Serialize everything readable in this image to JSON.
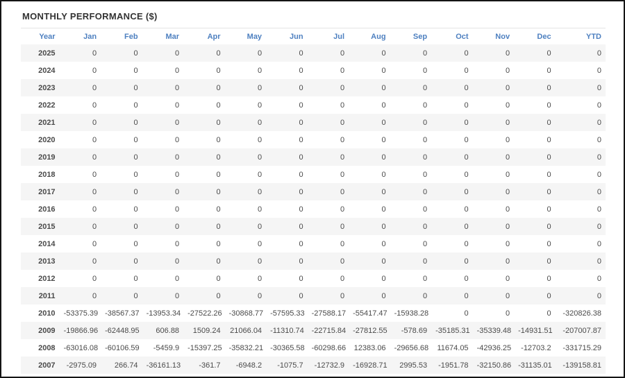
{
  "widget": {
    "title": "MONTHLY PERFORMANCE ($)"
  },
  "colors": {
    "header_blue": "#4e80c0",
    "negative_red": "#f97373",
    "text_dark": "#4a4a4a",
    "year_bold": "#333333",
    "row_stripe": "#f5f5f5",
    "divider": "#e4e4e4",
    "outer_border": "#141414"
  },
  "table": {
    "columns": [
      "Year",
      "Jan",
      "Feb",
      "Mar",
      "Apr",
      "May",
      "Jun",
      "Jul",
      "Aug",
      "Sep",
      "Oct",
      "Nov",
      "Dec",
      "YTD"
    ],
    "rows": [
      {
        "year": "2025",
        "values": [
          "0",
          "0",
          "0",
          "0",
          "0",
          "0",
          "0",
          "0",
          "0",
          "0",
          "0",
          "0",
          "0"
        ]
      },
      {
        "year": "2024",
        "values": [
          "0",
          "0",
          "0",
          "0",
          "0",
          "0",
          "0",
          "0",
          "0",
          "0",
          "0",
          "0",
          "0"
        ]
      },
      {
        "year": "2023",
        "values": [
          "0",
          "0",
          "0",
          "0",
          "0",
          "0",
          "0",
          "0",
          "0",
          "0",
          "0",
          "0",
          "0"
        ]
      },
      {
        "year": "2022",
        "values": [
          "0",
          "0",
          "0",
          "0",
          "0",
          "0",
          "0",
          "0",
          "0",
          "0",
          "0",
          "0",
          "0"
        ]
      },
      {
        "year": "2021",
        "values": [
          "0",
          "0",
          "0",
          "0",
          "0",
          "0",
          "0",
          "0",
          "0",
          "0",
          "0",
          "0",
          "0"
        ]
      },
      {
        "year": "2020",
        "values": [
          "0",
          "0",
          "0",
          "0",
          "0",
          "0",
          "0",
          "0",
          "0",
          "0",
          "0",
          "0",
          "0"
        ]
      },
      {
        "year": "2019",
        "values": [
          "0",
          "0",
          "0",
          "0",
          "0",
          "0",
          "0",
          "0",
          "0",
          "0",
          "0",
          "0",
          "0"
        ]
      },
      {
        "year": "2018",
        "values": [
          "0",
          "0",
          "0",
          "0",
          "0",
          "0",
          "0",
          "0",
          "0",
          "0",
          "0",
          "0",
          "0"
        ]
      },
      {
        "year": "2017",
        "values": [
          "0",
          "0",
          "0",
          "0",
          "0",
          "0",
          "0",
          "0",
          "0",
          "0",
          "0",
          "0",
          "0"
        ]
      },
      {
        "year": "2016",
        "values": [
          "0",
          "0",
          "0",
          "0",
          "0",
          "0",
          "0",
          "0",
          "0",
          "0",
          "0",
          "0",
          "0"
        ]
      },
      {
        "year": "2015",
        "values": [
          "0",
          "0",
          "0",
          "0",
          "0",
          "0",
          "0",
          "0",
          "0",
          "0",
          "0",
          "0",
          "0"
        ]
      },
      {
        "year": "2014",
        "values": [
          "0",
          "0",
          "0",
          "0",
          "0",
          "0",
          "0",
          "0",
          "0",
          "0",
          "0",
          "0",
          "0"
        ]
      },
      {
        "year": "2013",
        "values": [
          "0",
          "0",
          "0",
          "0",
          "0",
          "0",
          "0",
          "0",
          "0",
          "0",
          "0",
          "0",
          "0"
        ]
      },
      {
        "year": "2012",
        "values": [
          "0",
          "0",
          "0",
          "0",
          "0",
          "0",
          "0",
          "0",
          "0",
          "0",
          "0",
          "0",
          "0"
        ]
      },
      {
        "year": "2011",
        "values": [
          "0",
          "0",
          "0",
          "0",
          "0",
          "0",
          "0",
          "0",
          "0",
          "0",
          "0",
          "0",
          "0"
        ]
      },
      {
        "year": "2010",
        "values": [
          "-53375.39",
          "-38567.37",
          "-13953.34",
          "-27522.26",
          "-30868.77",
          "-57595.33",
          "-27588.17",
          "-55417.47",
          "-15938.28",
          "0",
          "0",
          "0",
          "-320826.38"
        ]
      },
      {
        "year": "2009",
        "values": [
          "-19866.96",
          "-62448.95",
          "606.88",
          "1509.24",
          "21066.04",
          "-11310.74",
          "-22715.84",
          "-27812.55",
          "-578.69",
          "-35185.31",
          "-35339.48",
          "-14931.51",
          "-207007.87"
        ]
      },
      {
        "year": "2008",
        "values": [
          "-63016.08",
          "-60106.59",
          "-5459.9",
          "-15397.25",
          "-35832.21",
          "-30365.58",
          "-60298.66",
          "12383.06",
          "-29656.68",
          "11674.05",
          "-42936.25",
          "-12703.2",
          "-331715.29"
        ]
      },
      {
        "year": "2007",
        "values": [
          "-2975.09",
          "266.74",
          "-36161.13",
          "-361.7",
          "-6948.2",
          "-1075.7",
          "-12732.9",
          "-16928.71",
          "2995.53",
          "-1951.78",
          "-32150.86",
          "-31135.01",
          "-139158.81"
        ]
      }
    ]
  }
}
